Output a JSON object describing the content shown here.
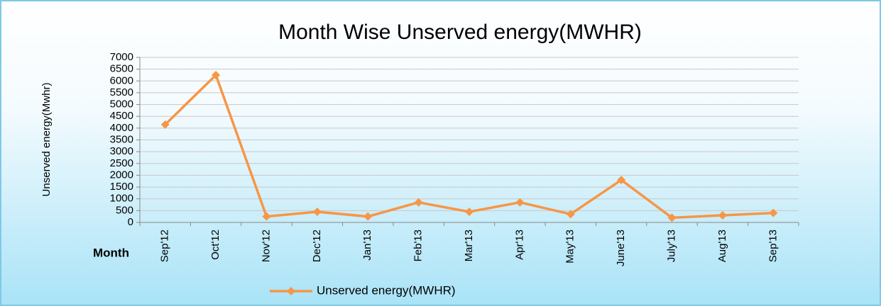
{
  "chart_data": {
    "type": "line",
    "title": "Month Wise Unserved energy(MWHR)",
    "y_label": "Unserved energy(Mwhr)",
    "x_label": "Month",
    "categories": [
      "Sep'12",
      "Oct'12",
      "Nov'12",
      "Dec'12",
      "Jan'13",
      "Feb'13",
      "Mar'13",
      "Apr'13",
      "May'13",
      "June'13",
      "July'13",
      "Aug'13",
      "Sep'13"
    ],
    "series": [
      {
        "name": "Unserved energy(MWHR)",
        "color": "#f79646",
        "values": [
          4150,
          6250,
          250,
          450,
          250,
          850,
          450,
          850,
          350,
          1800,
          200,
          300,
          400
        ]
      }
    ],
    "ylim": [
      0,
      7000
    ],
    "yticks": [
      0,
      500,
      1000,
      1500,
      2000,
      2500,
      3000,
      3500,
      4000,
      4500,
      5000,
      5500,
      6000,
      6500,
      7000
    ],
    "grid": true,
    "legend": "bottom"
  }
}
